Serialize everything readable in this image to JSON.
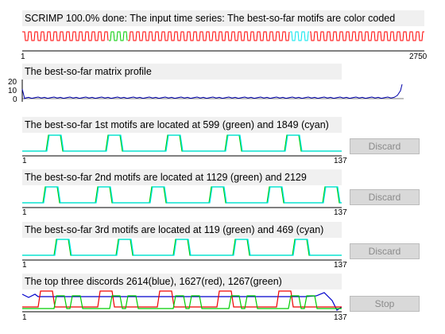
{
  "ts_panel": {
    "title": "SCRIMP 100.0% done: The input time series: The best-so-far motifs are color coded",
    "x_min_label": "1",
    "x_max_label": "2750",
    "colors": {
      "series": "#ff0000",
      "motif1": "#00cc00",
      "motif2": "#00e5ee"
    }
  },
  "mp_panel": {
    "title": "The best-so-far matrix profile",
    "y_ticks": [
      "20",
      "10",
      "0"
    ],
    "color": "#0000aa"
  },
  "motif_panels": [
    {
      "title": "The best-so-far 1st motifs are located at 599 (green) and 1849 (cyan)",
      "x_min_label": "1",
      "x_max_label": "137",
      "button_label": "Discard"
    },
    {
      "title": "The best-so-far 2nd motifs are located at 1129 (green) and 2129",
      "x_min_label": "1",
      "x_max_label": "137",
      "button_label": "Discard"
    },
    {
      "title": "The best-so-far 3rd motifs are located at 119 (green) and 469 (cyan)",
      "x_min_label": "1",
      "x_max_label": "137",
      "button_label": "Discard"
    }
  ],
  "discord_panel": {
    "title": "The top three discords 2614(blue), 1627(red), 1267(green)",
    "x_min_label": "1",
    "x_max_label": "137",
    "button_label": "Stop",
    "colors": {
      "blue": "#0000cc",
      "red": "#ee0000",
      "green": "#00cc00"
    }
  }
}
